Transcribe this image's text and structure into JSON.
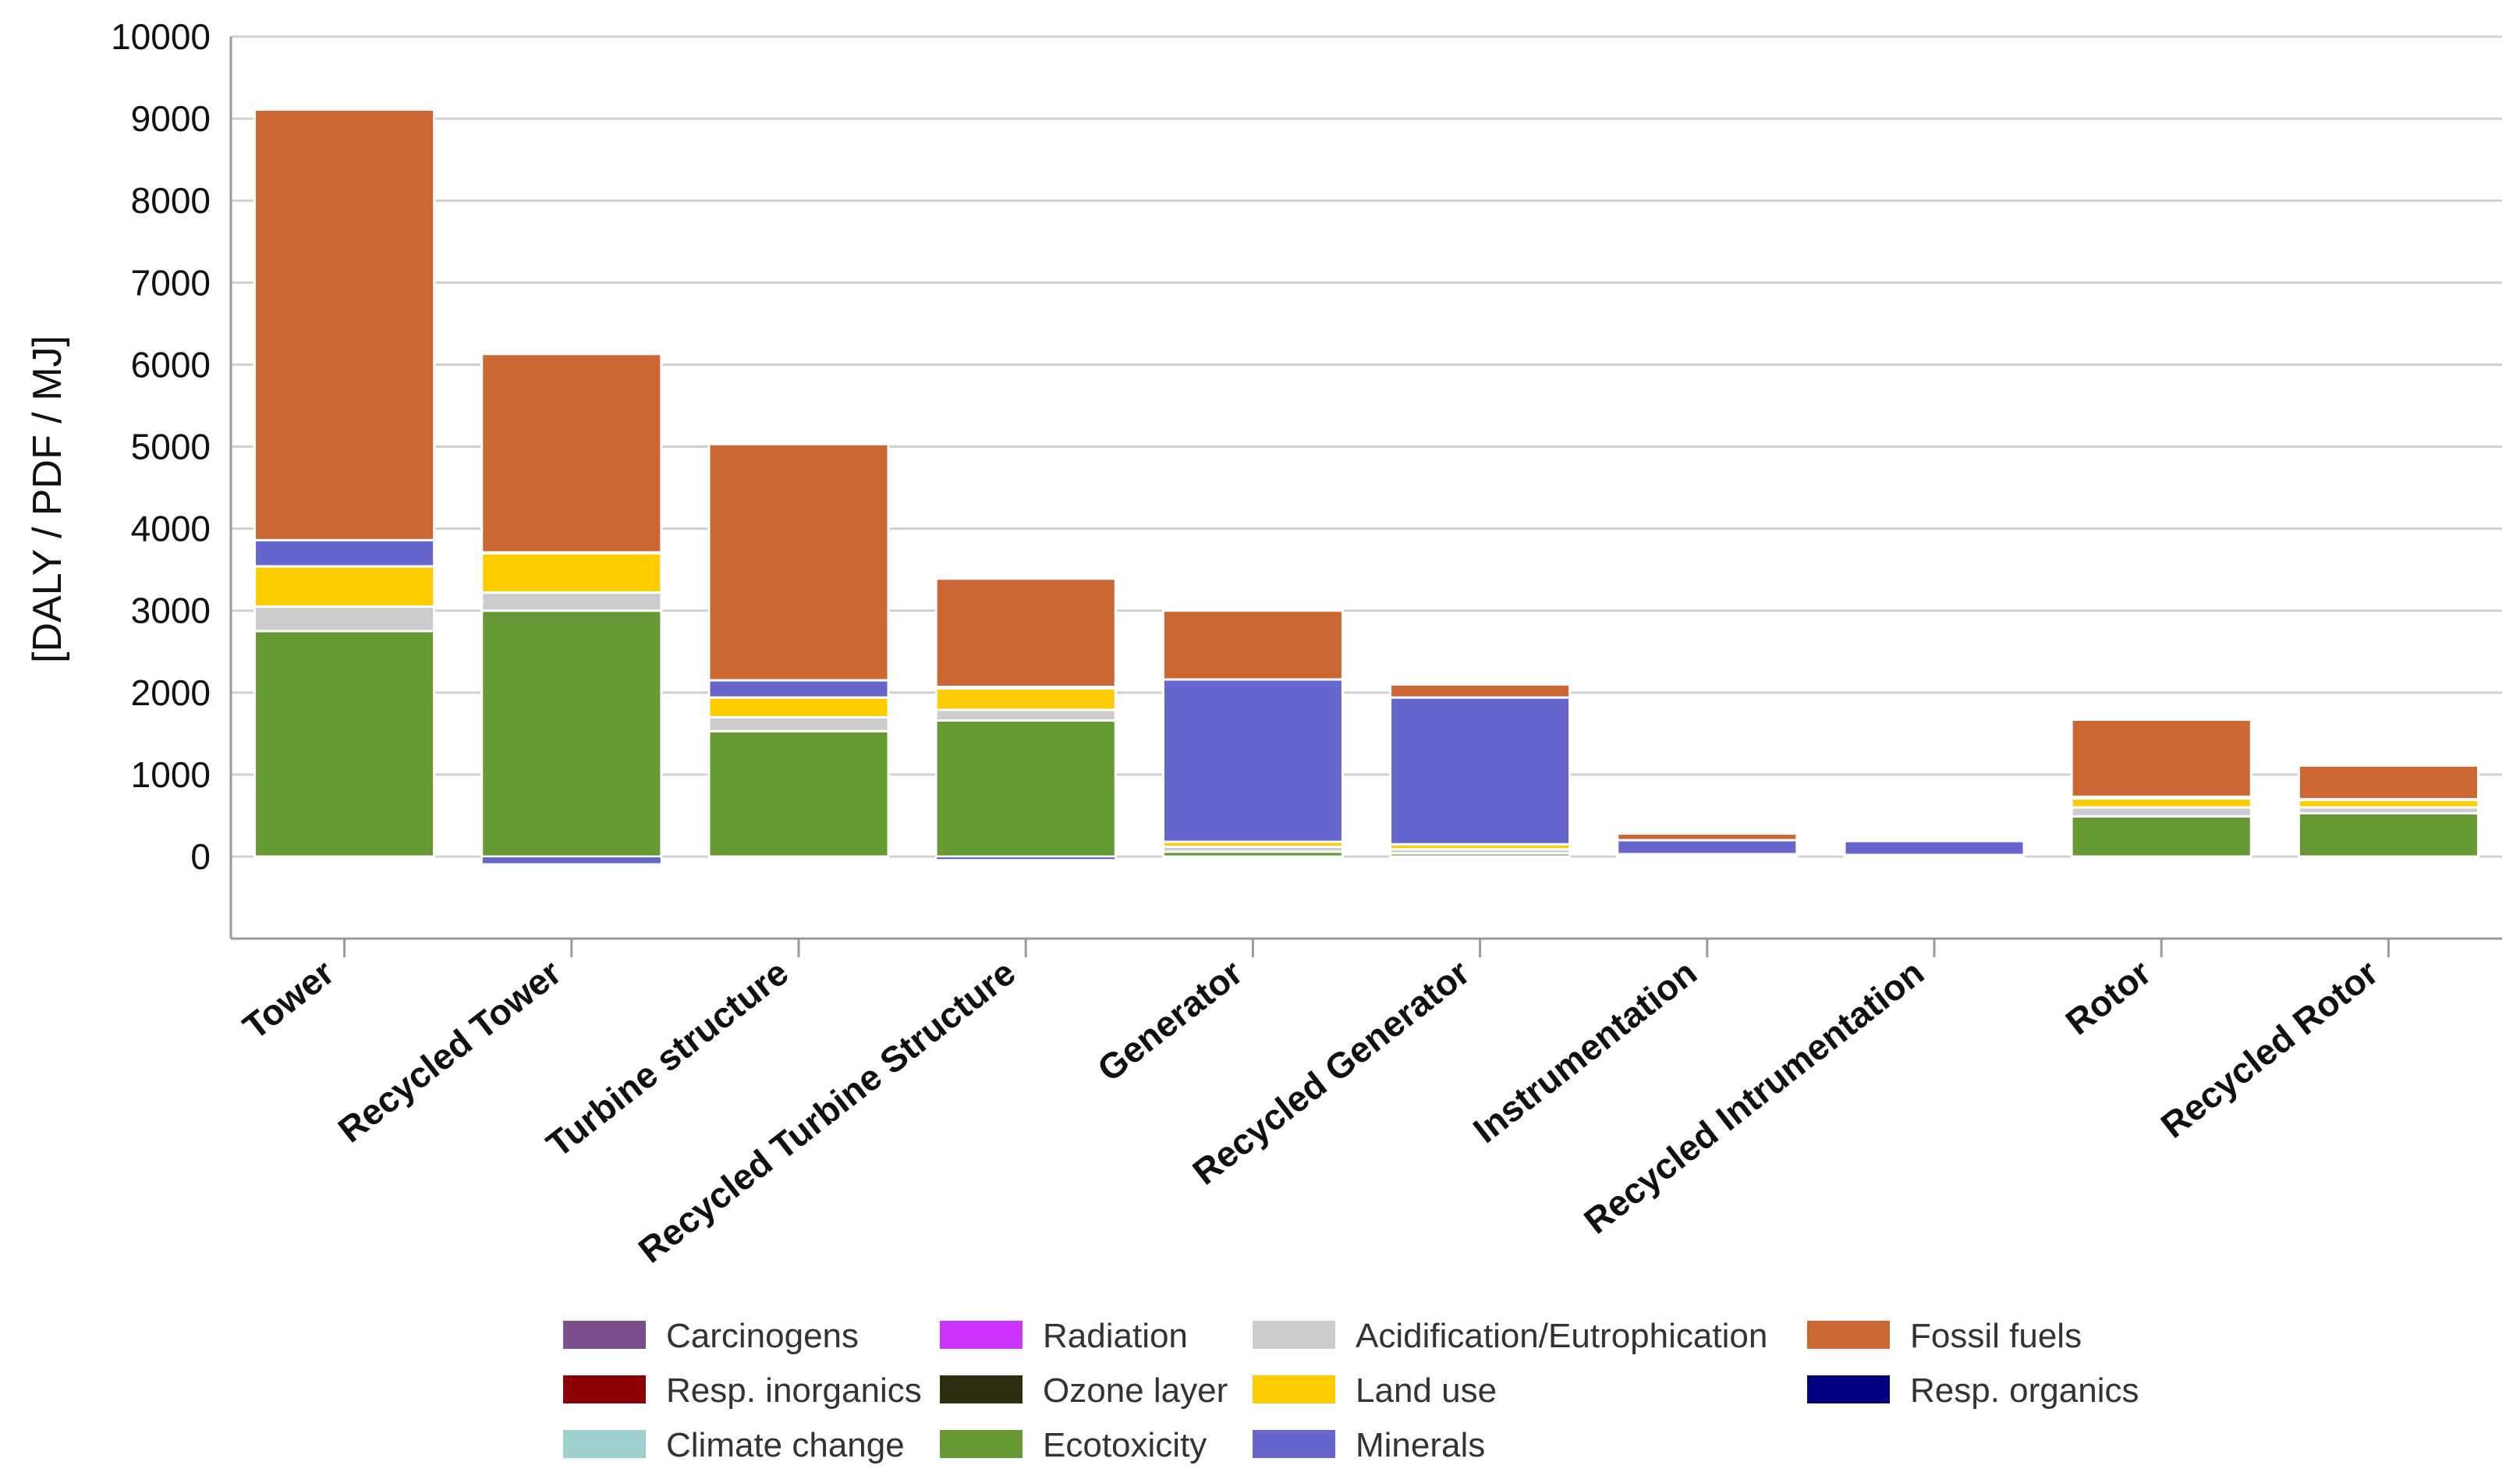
{
  "chart_data": {
    "type": "bar",
    "stacked": true,
    "title": "",
    "xlabel": "",
    "ylabel": "[DALY / PDF / MJ]",
    "ylim": [
      -1000,
      10000
    ],
    "yticks": [
      0,
      1000,
      2000,
      3000,
      4000,
      5000,
      6000,
      7000,
      8000,
      9000,
      10000
    ],
    "grid": true,
    "legend_position": "bottom",
    "categories": [
      "Tower",
      "Recycled Tower",
      "Turbine structure",
      "Recycled Turbine Structure",
      "Generator",
      "Recycled Generator",
      "Instrumentation",
      "Recycled Intrumentation",
      "Rotor",
      "Recycled Rotor"
    ],
    "series": [
      {
        "name": "Carcinogens",
        "color": "#7B4F8E",
        "values": [
          0,
          0,
          0,
          0,
          0,
          0,
          0,
          0,
          0,
          0
        ]
      },
      {
        "name": "Resp. inorganics",
        "color": "#8B0000",
        "values": [
          0,
          0,
          0,
          0,
          0,
          0,
          0,
          0,
          0,
          0
        ]
      },
      {
        "name": "Climate change",
        "color": "#9ECFCF",
        "values": [
          0,
          0,
          0,
          0,
          0,
          0,
          0,
          0,
          0,
          0
        ]
      },
      {
        "name": "Radiation",
        "color": "#CC33FF",
        "values": [
          0,
          0,
          0,
          0,
          0,
          0,
          0,
          0,
          0,
          0
        ]
      },
      {
        "name": "Ozone layer",
        "color": "#2E2E10",
        "values": [
          0,
          0,
          0,
          0,
          0,
          0,
          0,
          0,
          0,
          0
        ]
      },
      {
        "name": "Ecotoxicity",
        "color": "#669933",
        "values": [
          2750,
          3000,
          1530,
          1660,
          60,
          40,
          0,
          0,
          490,
          530
        ]
      },
      {
        "name": "Acidification/Eutrophication",
        "color": "#CCCCCC",
        "values": [
          300,
          220,
          170,
          130,
          60,
          50,
          20,
          10,
          110,
          70
        ]
      },
      {
        "name": "Land use",
        "color": "#FFCC00",
        "values": [
          490,
          480,
          240,
          260,
          60,
          60,
          10,
          10,
          110,
          90
        ]
      },
      {
        "name": "Minerals",
        "color": "#6666CC",
        "values": [
          320,
          10,
          210,
          20,
          1980,
          1790,
          170,
          170,
          20,
          10
        ]
      },
      {
        "name": "Fossil fuels",
        "color": "#CC6633",
        "values": [
          5250,
          2420,
          2880,
          1320,
          840,
          160,
          80,
          20,
          940,
          410
        ]
      },
      {
        "name": "Resp. organics",
        "color": "#000080",
        "values": [
          0,
          0,
          0,
          0,
          0,
          0,
          0,
          0,
          0,
          0
        ]
      }
    ],
    "negative_series": [
      {
        "name": "Minerals",
        "color": "#6666CC",
        "values": [
          0,
          -90,
          0,
          -40,
          0,
          0,
          0,
          0,
          0,
          0
        ]
      }
    ],
    "legend": [
      [
        "Carcinogens",
        "Radiation",
        "Acidification/Eutrophication",
        "Fossil fuels"
      ],
      [
        "Resp. inorganics",
        "Ozone layer",
        "Land use",
        "Resp. organics"
      ],
      [
        "Climate change",
        "Ecotoxicity",
        "Minerals",
        ""
      ]
    ]
  }
}
